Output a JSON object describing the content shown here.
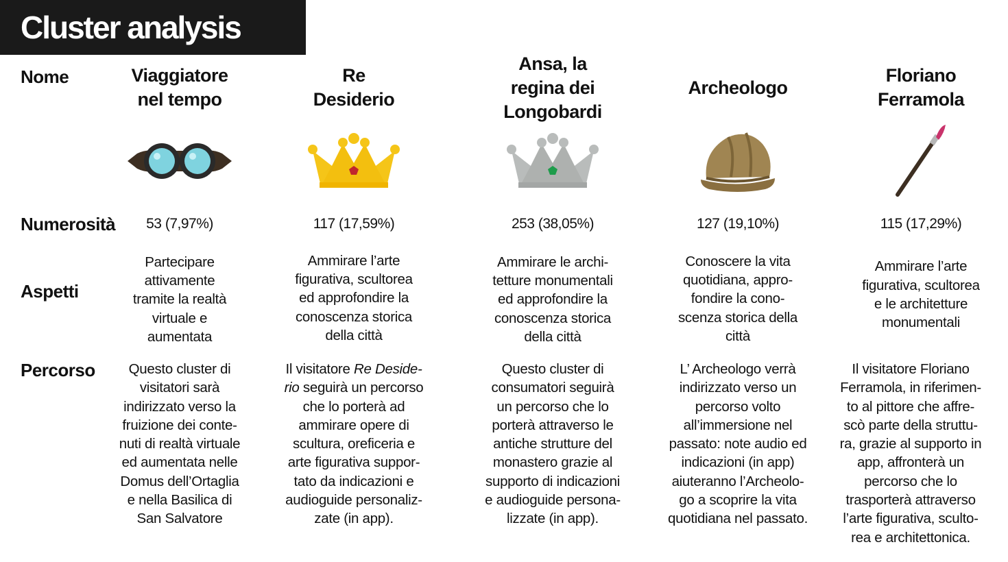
{
  "title": "Cluster analysis",
  "row_labels": {
    "nome": "Nome",
    "numerosita": "Numerosità",
    "aspetti": "Aspetti",
    "percorso": "Percorso"
  },
  "clusters": [
    {
      "name_lines": [
        "Viaggiatore",
        "nel tempo"
      ],
      "icon": "goggles-icon",
      "count": "53 (7,97%)",
      "aspects": [
        "Partecipare",
        "attivamente",
        "tramite la realtà",
        "virtuale e",
        "aumentata"
      ],
      "path": [
        "Questo cluster di",
        "visitatori sarà",
        "indirizzato verso la",
        "fruizione dei conte-",
        "nuti di realtà virtuale",
        "ed aumentata nelle",
        "Domus dell’Ortaglia",
        "e nella Basilica di",
        "San Salvatore"
      ]
    },
    {
      "name_lines": [
        "Re",
        "Desiderio"
      ],
      "icon": "gold-crown-icon",
      "count": "117 (17,59%)",
      "aspects": [
        "Ammirare l’arte",
        "figurativa, scultorea",
        "ed approfondire la",
        "conoscenza storica",
        "della città"
      ],
      "path_intro": "Il visitatore ",
      "path_em1": "Re Deside-",
      "path_em2": "rio",
      "path_after": " seguirà un percorso",
      "path": [
        "che lo porterà ad",
        "ammirare opere di",
        "scultura, oreficeria e",
        "arte figurativa suppor-",
        "tato da indicazioni e",
        "audioguide personaliz-",
        "zate (in app)."
      ]
    },
    {
      "name_lines": [
        "Ansa, la",
        "regina dei",
        "Longobardi"
      ],
      "icon": "silver-crown-icon",
      "count": "253 (38,05%)",
      "aspects": [
        "Ammirare le archi-",
        "tetture monumentali",
        "ed approfondire la",
        "conoscenza storica",
        "della città"
      ],
      "path": [
        "Questo cluster di",
        "consumatori seguirà",
        "un percorso che lo",
        "porterà attraverso le",
        "antiche strutture del",
        "monastero grazie al",
        "supporto di indicazioni",
        "e audioguide persona-",
        "lizzate (in app)."
      ]
    },
    {
      "name_lines": [
        "Archeologo"
      ],
      "icon": "explorer-hat-icon",
      "count": "127 (19,10%)",
      "aspects": [
        "Conoscere la vita",
        "quotidiana, appro-",
        "fondire la cono-",
        "scenza storica della",
        "città"
      ],
      "path": [
        "L’ Archeologo verrà",
        "indirizzato verso un",
        "percorso volto",
        "all’immersione nel",
        "passato: note audio ed",
        "indicazioni (in app)",
        "aiuteranno l’Archeolo-",
        "go a scoprire la vita",
        "quotidiana nel passato."
      ]
    },
    {
      "name_lines": [
        "Floriano",
        "Ferramola"
      ],
      "icon": "paintbrush-icon",
      "count": "115 (17,29%)",
      "aspects": [
        "Ammirare l’arte",
        "figurativa, scultorea",
        "e le architetture",
        "monumentali"
      ],
      "path": [
        "Il visitatore Floriano",
        "Ferramola, in riferimen-",
        "to al pittore che affre-",
        "scò parte della struttu-",
        "ra, grazie al supporto in",
        "app, affronterà un",
        "percorso che lo",
        "trasporterà attraverso",
        "l’arte figurativa, sculto-",
        "rea e architettonica."
      ]
    }
  ],
  "colors": {
    "title_bg": "#1a1a1a",
    "gold_crown": "#f5c518",
    "silver_crown": "#b9bcbb",
    "goggle_lens": "#7fd3df",
    "hat": "#a08552"
  }
}
